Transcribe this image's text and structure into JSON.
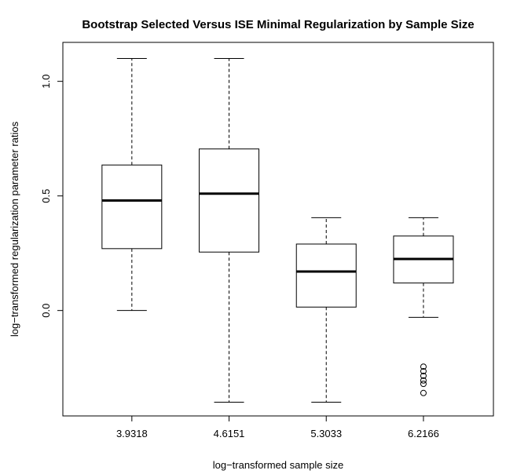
{
  "chart_data": {
    "type": "boxplot",
    "title": "Bootstrap Selected Versus ISE Minimal Regularization by Sample Size",
    "xlabel": "log−transformed sample size",
    "ylabel": "log−transformed regularization parameter ratios",
    "categories": [
      "3.9318",
      "4.6151",
      "5.3033",
      "6.2166"
    ],
    "y_ticks": [
      "0.0",
      "0.5",
      "1.0"
    ],
    "y_tick_values": [
      0.0,
      0.5,
      1.0
    ],
    "ylim": [
      -0.46,
      1.17
    ],
    "grid": false,
    "boxes": [
      {
        "category": "3.9318",
        "whisker_low": 0.0,
        "q1": 0.27,
        "median": 0.48,
        "q3": 0.635,
        "whisker_high": 1.1,
        "outliers": []
      },
      {
        "category": "4.6151",
        "whisker_low": -0.4,
        "q1": 0.255,
        "median": 0.51,
        "q3": 0.705,
        "whisker_high": 1.1,
        "outliers": []
      },
      {
        "category": "5.3033",
        "whisker_low": -0.4,
        "q1": 0.015,
        "median": 0.17,
        "q3": 0.29,
        "whisker_high": 0.405,
        "outliers": []
      },
      {
        "category": "6.2166",
        "whisker_low": -0.03,
        "q1": 0.12,
        "median": 0.225,
        "q3": 0.325,
        "whisker_high": 0.405,
        "outliers": [
          -0.245,
          -0.265,
          -0.285,
          -0.305,
          -0.32,
          -0.36
        ]
      }
    ]
  }
}
